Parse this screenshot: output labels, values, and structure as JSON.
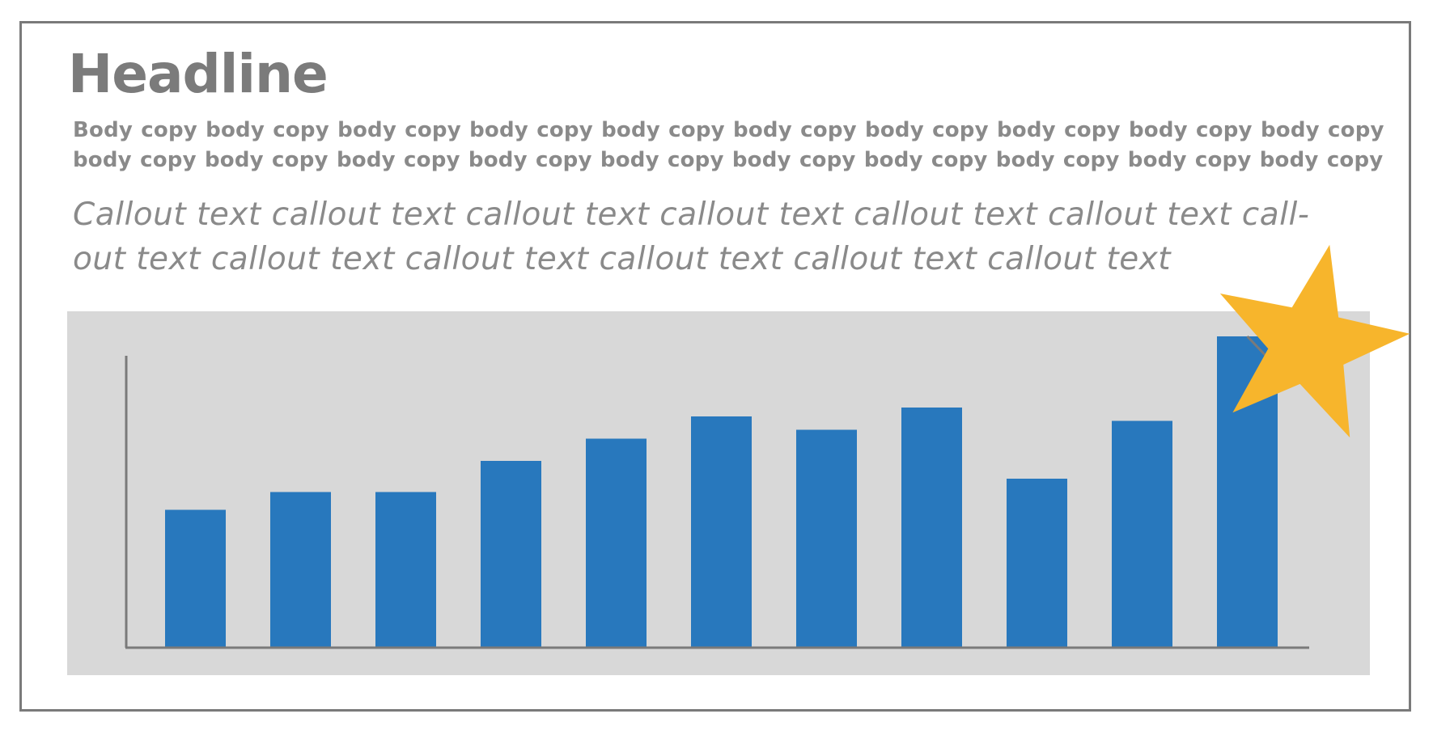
{
  "slide": {
    "headline": "Headline",
    "body_copy": [
      "Body copy body copy body copy body copy body copy body copy body copy body copy body copy body copy",
      "body copy body copy body copy body copy body copy body copy body copy body copy body copy body copy"
    ],
    "callout": [
      "Callout text callout text callout text callout text callout text callout text call-",
      "out text callout text callout text callout text callout text callout text"
    ]
  },
  "colors": {
    "bar": "#2878bd",
    "panel": "#d8d8d8",
    "axis": "#7a7a7a",
    "star": "#f7b52c",
    "text": "#8a8a8a",
    "headline": "#7b7b7b"
  },
  "icons": {
    "highlight": "star-icon"
  },
  "chart_data": {
    "type": "bar",
    "categories": [
      "",
      "",
      "",
      "",
      "",
      "",
      "",
      "",
      "",
      "",
      ""
    ],
    "values": [
      31,
      35,
      35,
      42,
      47,
      52,
      49,
      54,
      38,
      51,
      70
    ],
    "ylim": [
      0,
      100
    ],
    "title": "",
    "xlabel": "",
    "ylabel": "",
    "grid": false,
    "legend": "none",
    "highlight_index": 10
  }
}
